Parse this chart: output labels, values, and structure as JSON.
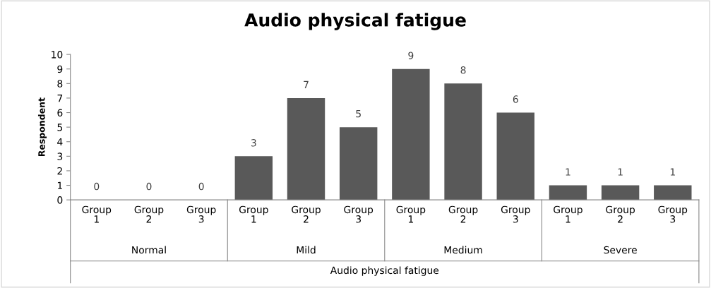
{
  "chart_data": {
    "type": "bar",
    "title": "Audio physical fatigue",
    "ylabel": "Respondent",
    "xlabel": "Audio physical fatigue",
    "categories": [
      "Group 1",
      "Group 2",
      "Group 3",
      "Group 1",
      "Group 2",
      "Group 3",
      "Group 1",
      "Group 2",
      "Group 3",
      "Group 1",
      "Group 2",
      "Group 3"
    ],
    "values": [
      0,
      0,
      0,
      3,
      7,
      5,
      9,
      8,
      6,
      1,
      1,
      1
    ],
    "color": "#595959",
    "annotations": [
      "Normal",
      "Mild",
      "Medium",
      "Severe"
    ],
    "ylim": [
      0,
      10
    ],
    "yticks": [
      0,
      1,
      2,
      3,
      4,
      5,
      6,
      7,
      8,
      9,
      10
    ],
    "data_labels": true,
    "grid": false,
    "legend": false
  }
}
